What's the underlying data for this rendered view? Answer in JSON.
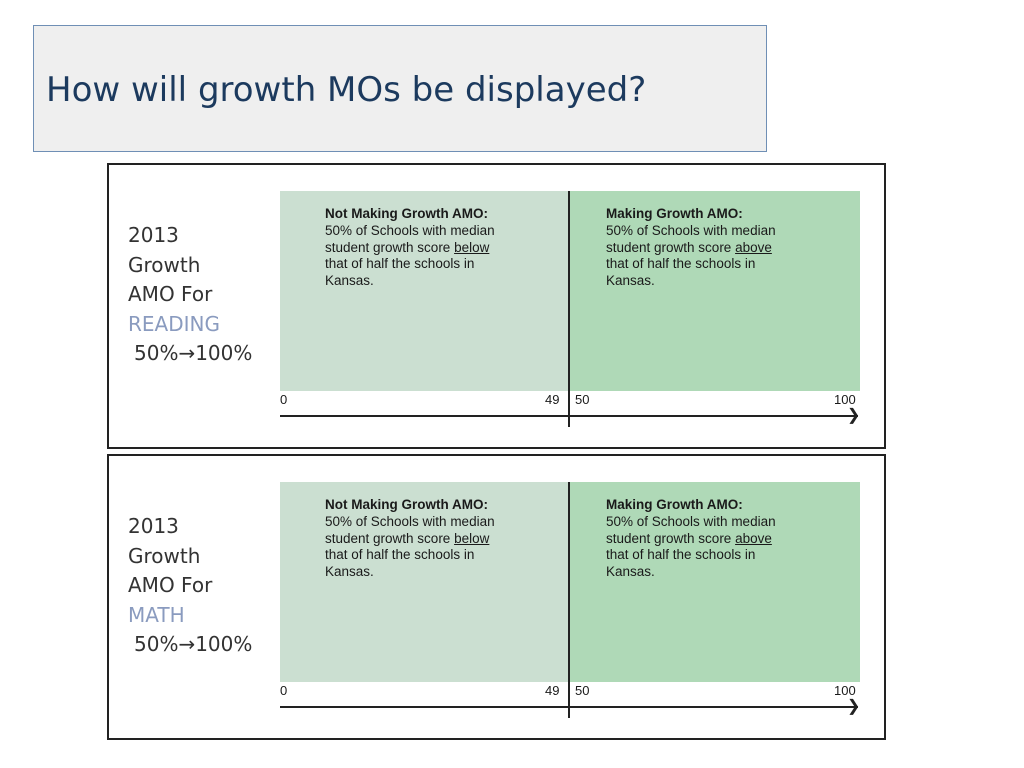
{
  "slide": {
    "title": "How will growth MOs be displayed?"
  },
  "panels": [
    {
      "year": "2013",
      "line2": "Growth",
      "line3": "AMO For",
      "subject": "READING",
      "range": "50%→100%",
      "left_zone": {
        "heading": "Not Making Growth AMO:",
        "body_before": "50% of Schools with median student growth score ",
        "body_emph": "below",
        "body_after": " that of half the schools in Kansas."
      },
      "right_zone": {
        "heading": "Making Growth AMO:",
        "body_before": "50% of Schools with median student growth score ",
        "body_emph": "above",
        "body_after": " that of half the schools in Kansas."
      },
      "ticks": {
        "start": "0",
        "left_end": "49",
        "right_start": "50",
        "end": "100"
      },
      "colors": {
        "left_zone": "#cbdfd1",
        "right_zone": "#afd9b7",
        "subject": "#8a9bbf"
      }
    },
    {
      "year": "2013",
      "line2": "Growth",
      "line3": "AMO For",
      "subject": "MATH",
      "range": "50%→100%",
      "left_zone": {
        "heading": "Not Making Growth AMO:",
        "body_before": "50% of Schools with median student growth score ",
        "body_emph": "below",
        "body_after": " that of half the schools in Kansas."
      },
      "right_zone": {
        "heading": "Making Growth AMO:",
        "body_before": "50% of Schools with median student growth score ",
        "body_emph": "above",
        "body_after": " that of half the schools in Kansas."
      },
      "ticks": {
        "start": "0",
        "left_end": "49",
        "right_start": "50",
        "end": "100"
      },
      "colors": {
        "left_zone": "#cbdfd1",
        "right_zone": "#afd9b7",
        "subject": "#8a9bbf"
      }
    }
  ]
}
